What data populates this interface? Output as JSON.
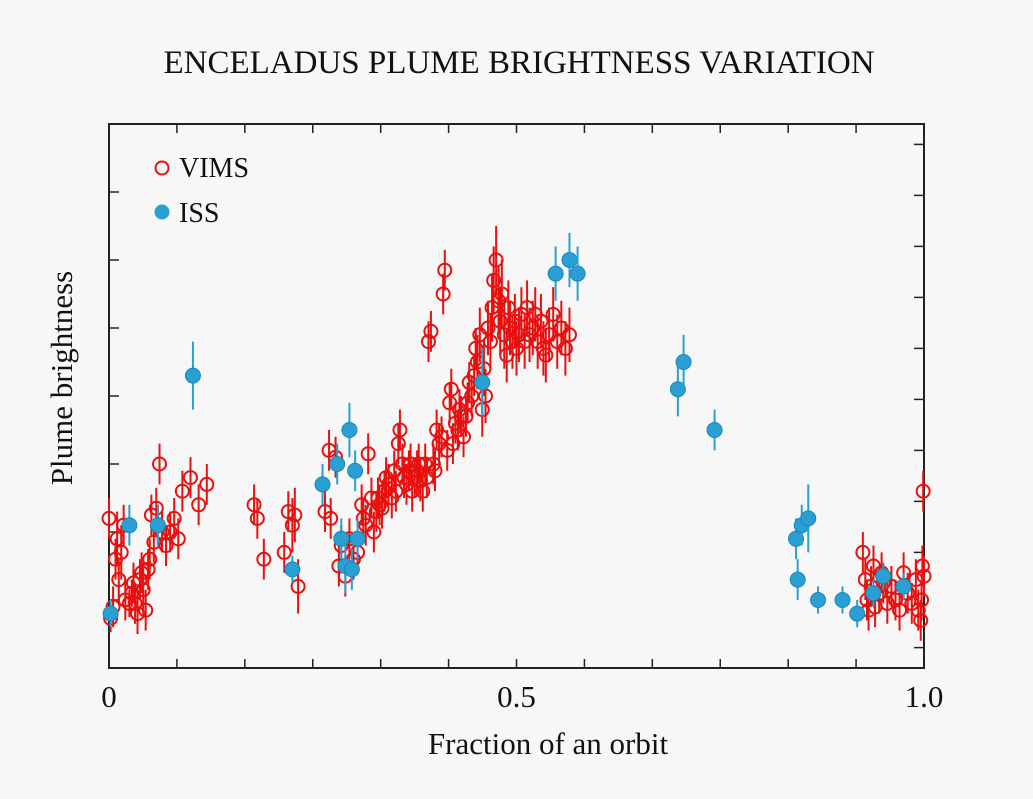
{
  "chart_data": {
    "type": "scatter",
    "title": "ENCELADUS PLUME BRIGHTNESS VARIATION",
    "xlabel": "Fraction of an orbit",
    "ylabel": "Plume brightness",
    "xlim": [
      0,
      1
    ],
    "ylim": [
      0,
      8
    ],
    "x_ticks": [
      {
        "value": 0,
        "label": "0"
      },
      {
        "value": 0.5,
        "label": "0.5"
      },
      {
        "value": 1,
        "label": "1.0"
      }
    ],
    "grid": false,
    "y_tick_labels_shown": false,
    "legend": {
      "position": "top-left"
    },
    "colors": {
      "VIMS": "#e8110f",
      "ISS": "#2a9fd4"
    },
    "series": [
      {
        "name": "VIMS",
        "marker": "open-circle",
        "color": "#e8110f",
        "points": [
          [
            0.0,
            2.2,
            0.3
          ],
          [
            0.002,
            0.73,
            0.2
          ],
          [
            0.005,
            0.9,
            0.3
          ],
          [
            0.008,
            1.6,
            0.3
          ],
          [
            0.01,
            1.9,
            0.4
          ],
          [
            0.012,
            1.3,
            0.3
          ],
          [
            0.015,
            1.7,
            0.4
          ],
          [
            0.018,
            2.1,
            0.3
          ],
          [
            0.02,
            1.0,
            0.3
          ],
          [
            0.025,
            0.95,
            0.2
          ],
          [
            0.028,
            1.1,
            0.2
          ],
          [
            0.03,
            1.25,
            0.3
          ],
          [
            0.032,
            0.95,
            0.3
          ],
          [
            0.035,
            0.8,
            0.3
          ],
          [
            0.038,
            1.3,
            0.3
          ],
          [
            0.04,
            1.4,
            0.3
          ],
          [
            0.042,
            1.15,
            0.4
          ],
          [
            0.045,
            0.85,
            0.3
          ],
          [
            0.048,
            1.45,
            0.3
          ],
          [
            0.05,
            1.6,
            0.3
          ],
          [
            0.052,
            2.25,
            0.3
          ],
          [
            0.055,
            1.85,
            0.3
          ],
          [
            0.058,
            2.35,
            0.3
          ],
          [
            0.06,
            2.1,
            0.3
          ],
          [
            0.062,
            3.0,
            0.3
          ],
          [
            0.065,
            2.0,
            0.3
          ],
          [
            0.07,
            1.8,
            0.3
          ],
          [
            0.075,
            2.0,
            0.3
          ],
          [
            0.08,
            2.2,
            0.3
          ],
          [
            0.085,
            1.9,
            0.3
          ],
          [
            0.09,
            2.6,
            0.3
          ],
          [
            0.1,
            2.8,
            0.3
          ],
          [
            0.11,
            2.4,
            0.3
          ],
          [
            0.12,
            2.7,
            0.3
          ],
          [
            0.178,
            2.4,
            0.3
          ],
          [
            0.182,
            2.2,
            0.3
          ],
          [
            0.19,
            1.6,
            0.3
          ],
          [
            0.215,
            1.7,
            0.3
          ],
          [
            0.22,
            2.3,
            0.3
          ],
          [
            0.225,
            2.1,
            0.4
          ],
          [
            0.228,
            2.25,
            0.4
          ],
          [
            0.232,
            1.2,
            0.4
          ],
          [
            0.265,
            2.3,
            0.3
          ],
          [
            0.27,
            3.2,
            0.3
          ],
          [
            0.272,
            2.2,
            0.3
          ],
          [
            0.278,
            3.1,
            0.3
          ],
          [
            0.282,
            1.5,
            0.3
          ],
          [
            0.285,
            1.8,
            0.3
          ],
          [
            0.29,
            1.35,
            0.3
          ],
          [
            0.295,
            1.9,
            0.3
          ],
          [
            0.3,
            1.6,
            0.3
          ],
          [
            0.305,
            1.7,
            0.3
          ],
          [
            0.31,
            2.4,
            0.3
          ],
          [
            0.312,
            2.2,
            0.3
          ],
          [
            0.315,
            2.1,
            0.3
          ],
          [
            0.318,
            3.15,
            0.3
          ],
          [
            0.322,
            2.5,
            0.3
          ],
          [
            0.325,
            2.0,
            0.3
          ],
          [
            0.328,
            2.3,
            0.3
          ],
          [
            0.33,
            2.5,
            0.3
          ],
          [
            0.332,
            2.4,
            0.3
          ],
          [
            0.335,
            2.35,
            0.3
          ],
          [
            0.338,
            2.6,
            0.3
          ],
          [
            0.34,
            2.8,
            0.3
          ],
          [
            0.343,
            2.7,
            0.3
          ],
          [
            0.347,
            2.5,
            0.3
          ],
          [
            0.35,
            2.9,
            0.3
          ],
          [
            0.352,
            2.6,
            0.3
          ],
          [
            0.355,
            3.3,
            0.3
          ],
          [
            0.357,
            3.5,
            0.3
          ],
          [
            0.36,
            3.0,
            0.3
          ],
          [
            0.362,
            2.8,
            0.3
          ],
          [
            0.365,
            2.7,
            0.3
          ],
          [
            0.368,
            2.9,
            0.3
          ],
          [
            0.37,
            3.0,
            0.3
          ],
          [
            0.372,
            2.6,
            0.3
          ],
          [
            0.375,
            2.8,
            0.3
          ],
          [
            0.378,
            2.9,
            0.3
          ],
          [
            0.38,
            3.0,
            0.3
          ],
          [
            0.382,
            2.75,
            0.3
          ],
          [
            0.385,
            2.6,
            0.3
          ],
          [
            0.388,
            3.0,
            0.3
          ],
          [
            0.39,
            2.8,
            0.3
          ],
          [
            0.392,
            4.8,
            0.3
          ],
          [
            0.395,
            4.95,
            0.3
          ],
          [
            0.398,
            3.0,
            0.3
          ],
          [
            0.4,
            2.9,
            0.3
          ],
          [
            0.402,
            3.5,
            0.3
          ],
          [
            0.405,
            3.3,
            0.3
          ],
          [
            0.408,
            3.4,
            0.3
          ],
          [
            0.41,
            5.5,
            0.3
          ],
          [
            0.412,
            5.85,
            0.3
          ],
          [
            0.415,
            3.2,
            0.3
          ],
          [
            0.418,
            3.9,
            0.3
          ],
          [
            0.42,
            4.1,
            0.3
          ],
          [
            0.422,
            3.3,
            0.3
          ],
          [
            0.425,
            3.6,
            0.3
          ],
          [
            0.428,
            3.5,
            0.3
          ],
          [
            0.43,
            3.8,
            0.3
          ],
          [
            0.432,
            3.7,
            0.3
          ],
          [
            0.435,
            3.4,
            0.3
          ],
          [
            0.438,
            3.7,
            0.3
          ],
          [
            0.44,
            3.9,
            0.3
          ],
          [
            0.442,
            4.2,
            0.3
          ],
          [
            0.445,
            4.0,
            0.3
          ],
          [
            0.448,
            4.3,
            0.3
          ],
          [
            0.45,
            4.7,
            0.3
          ],
          [
            0.452,
            4.5,
            0.4
          ],
          [
            0.455,
            4.9,
            0.4
          ],
          [
            0.458,
            3.8,
            0.4
          ],
          [
            0.46,
            4.4,
            0.4
          ],
          [
            0.462,
            4.0,
            0.4
          ],
          [
            0.465,
            5.0,
            0.4
          ],
          [
            0.468,
            4.8,
            0.4
          ],
          [
            0.47,
            5.3,
            0.5
          ],
          [
            0.472,
            5.7,
            0.5
          ],
          [
            0.475,
            6.0,
            0.5
          ],
          [
            0.478,
            5.4,
            0.5
          ],
          [
            0.48,
            5.1,
            0.5
          ],
          [
            0.482,
            5.5,
            0.5
          ],
          [
            0.485,
            4.9,
            0.5
          ],
          [
            0.488,
            4.6,
            0.4
          ],
          [
            0.49,
            5.3,
            0.4
          ],
          [
            0.492,
            5.0,
            0.4
          ],
          [
            0.495,
            4.8,
            0.4
          ],
          [
            0.498,
            5.1,
            0.4
          ],
          [
            0.5,
            4.7,
            0.4
          ],
          [
            0.503,
            4.9,
            0.4
          ],
          [
            0.506,
            5.2,
            0.4
          ],
          [
            0.51,
            4.8,
            0.4
          ],
          [
            0.513,
            5.3,
            0.4
          ],
          [
            0.516,
            4.9,
            0.4
          ],
          [
            0.52,
            5.0,
            0.4
          ],
          [
            0.523,
            5.2,
            0.4
          ],
          [
            0.526,
            4.8,
            0.4
          ],
          [
            0.53,
            5.1,
            0.4
          ],
          [
            0.533,
            4.7,
            0.4
          ],
          [
            0.536,
            4.6,
            0.4
          ],
          [
            0.54,
            4.9,
            0.4
          ],
          [
            0.545,
            5.2,
            0.4
          ],
          [
            0.55,
            4.8,
            0.4
          ],
          [
            0.555,
            5.0,
            0.4
          ],
          [
            0.56,
            4.7,
            0.4
          ],
          [
            0.565,
            4.9,
            0.4
          ],
          [
            0.925,
            1.7,
            0.3
          ],
          [
            0.928,
            1.3,
            0.3
          ],
          [
            0.93,
            1.0,
            0.3
          ],
          [
            0.932,
            0.85,
            0.3
          ],
          [
            0.935,
            1.2,
            0.3
          ],
          [
            0.938,
            1.5,
            0.3
          ],
          [
            0.94,
            0.9,
            0.3
          ],
          [
            0.945,
            1.1,
            0.3
          ],
          [
            0.948,
            1.4,
            0.3
          ],
          [
            0.95,
            1.25,
            0.3
          ],
          [
            0.955,
            0.95,
            0.3
          ],
          [
            0.96,
            1.2,
            0.3
          ],
          [
            0.965,
            1.0,
            0.3
          ],
          [
            0.97,
            0.85,
            0.3
          ],
          [
            0.975,
            1.4,
            0.3
          ],
          [
            0.98,
            1.1,
            0.3
          ],
          [
            0.985,
            0.95,
            0.3
          ],
          [
            0.99,
            1.3,
            0.3
          ],
          [
            0.993,
            0.85,
            0.3
          ],
          [
            0.996,
            0.7,
            0.3
          ],
          [
            0.998,
            1.5,
            0.3
          ],
          [
            1.0,
            1.35,
            0.3
          ],
          [
            0.999,
            2.6,
            0.3
          ],
          [
            0.997,
            1.0,
            0.3
          ]
        ]
      },
      {
        "name": "ISS",
        "marker": "filled-circle",
        "color": "#2a9fd4",
        "points": [
          [
            0.002,
            0.8,
            0.2
          ],
          [
            0.025,
            2.1,
            0.3
          ],
          [
            0.06,
            2.1,
            0.3
          ],
          [
            0.103,
            4.3,
            0.5
          ],
          [
            0.225,
            1.45,
            0.2
          ],
          [
            0.262,
            2.7,
            0.3
          ],
          [
            0.28,
            3.0,
            0.3
          ],
          [
            0.285,
            1.9,
            0.3
          ],
          [
            0.29,
            1.5,
            0.4
          ],
          [
            0.295,
            3.5,
            0.4
          ],
          [
            0.298,
            1.45,
            0.3
          ],
          [
            0.302,
            2.9,
            0.3
          ],
          [
            0.305,
            1.9,
            0.3
          ],
          [
            0.458,
            4.2,
            0.5
          ],
          [
            0.548,
            5.8,
            0.4
          ],
          [
            0.565,
            6.0,
            0.4
          ],
          [
            0.575,
            5.8,
            0.4
          ],
          [
            0.698,
            4.1,
            0.4
          ],
          [
            0.705,
            4.5,
            0.4
          ],
          [
            0.743,
            3.5,
            0.3
          ],
          [
            0.843,
            1.9,
            0.3
          ],
          [
            0.845,
            1.3,
            0.3
          ],
          [
            0.85,
            2.1,
            0.3
          ],
          [
            0.858,
            2.2,
            0.5
          ],
          [
            0.87,
            1.0,
            0.2
          ],
          [
            0.9,
            1.0,
            0.2
          ],
          [
            0.918,
            0.8,
            0.2
          ],
          [
            0.938,
            1.1,
            0.2
          ],
          [
            0.95,
            1.35,
            0.2
          ],
          [
            0.975,
            1.2,
            0.2
          ]
        ]
      }
    ]
  }
}
